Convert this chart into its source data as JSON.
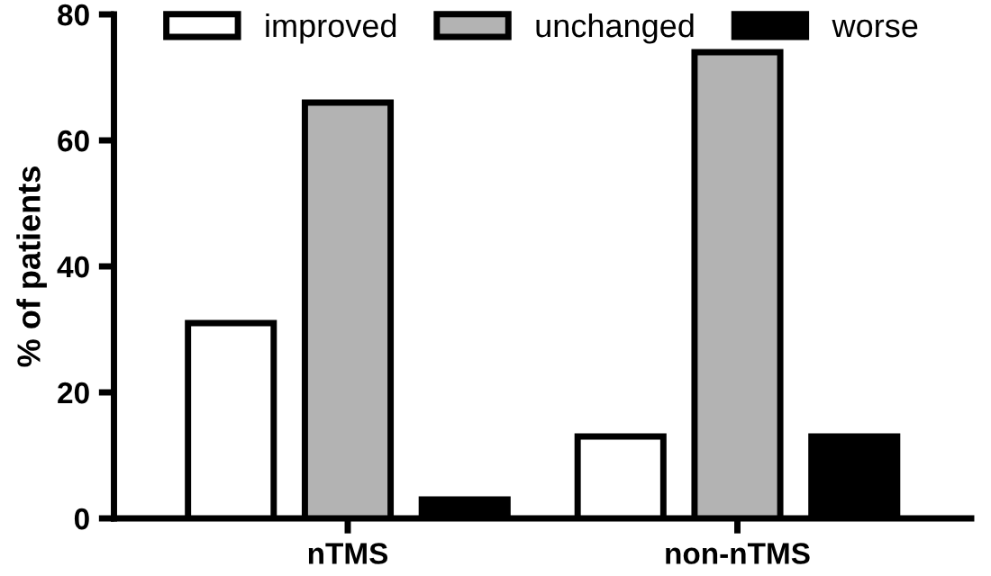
{
  "chart_data": {
    "type": "bar",
    "ylabel": "% of patients",
    "categories": [
      "nTMS",
      "non-nTMS"
    ],
    "series": [
      {
        "name": "improved",
        "color": "#ffffff",
        "values": [
          31,
          13
        ]
      },
      {
        "name": "unchanged",
        "color": "#b3b3b3",
        "values": [
          66,
          74
        ]
      },
      {
        "name": "worse",
        "color": "#000000",
        "values": [
          3,
          13
        ]
      }
    ],
    "ylim": [
      0,
      80
    ],
    "yticks": [
      0,
      20,
      40,
      60,
      80
    ],
    "grid": false,
    "legend": "top"
  }
}
